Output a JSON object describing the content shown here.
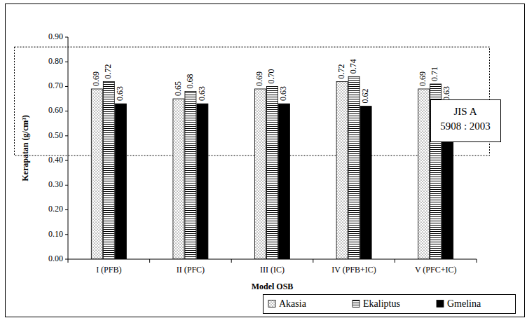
{
  "chart_data": {
    "type": "bar",
    "x_label": "Model OSB",
    "y_label": "Kerapatan (g/cm³)",
    "categories": [
      "I (PFB)",
      "II (PFC)",
      "III (IC)",
      "IV (PFB+IC)",
      "V (PFC+IC)"
    ],
    "series": [
      {
        "name": "Akasia",
        "color": "#ffffff",
        "values": [
          0.69,
          0.65,
          0.69,
          0.72,
          0.69
        ],
        "value_labels": [
          "0.69",
          "0.65",
          "0.69",
          "0.72",
          "0.69"
        ]
      },
      {
        "name": "Ekaliptus",
        "color": "#ffffff",
        "values": [
          0.72,
          0.68,
          0.7,
          0.74,
          0.71
        ],
        "value_labels": [
          "0.72",
          "0.68",
          "0.70",
          "0.74",
          "0.71"
        ]
      },
      {
        "name": "Gmelina",
        "color": "#000000",
        "values": [
          0.63,
          0.63,
          0.63,
          0.62,
          0.63
        ],
        "value_labels": [
          "0.63",
          "0.63",
          "0.63",
          "0.62",
          "0.63"
        ]
      }
    ],
    "ylim": [
      0,
      0.9
    ],
    "yticks": [
      {
        "value": 0,
        "label": "0.00"
      },
      {
        "value": 0.1,
        "label": "0.10"
      },
      {
        "value": 0.2,
        "label": "0.20"
      },
      {
        "value": 0.3,
        "label": "0.30"
      },
      {
        "value": 0.4,
        "label": "0.40"
      },
      {
        "value": 0.5,
        "label": "0.50"
      },
      {
        "value": 0.6,
        "label": "0.60"
      },
      {
        "value": 0.7,
        "label": "0.70"
      },
      {
        "value": 0.8,
        "label": "0.80"
      },
      {
        "value": 0.9,
        "label": "0.90"
      }
    ],
    "grid": false,
    "legend": "bottom right",
    "data_labels": true,
    "annotations": [
      {
        "lines": [
          "JIS A",
          "5908 : 2003"
        ],
        "ymin": 0.42,
        "ymax": 0.86
      }
    ]
  }
}
